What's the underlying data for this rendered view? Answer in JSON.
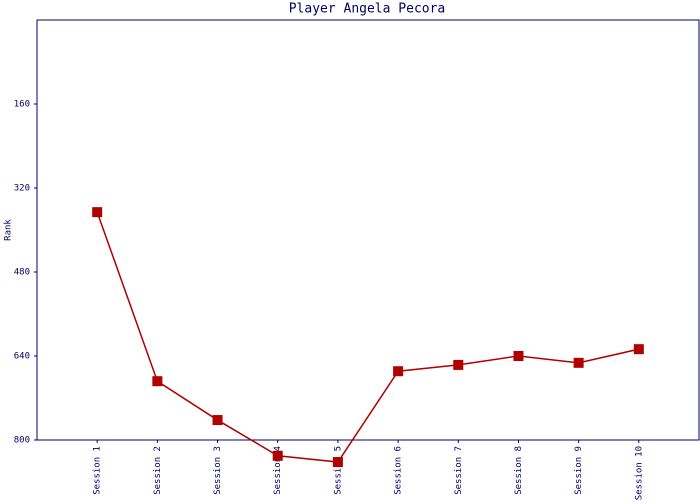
{
  "chart_data": {
    "type": "line",
    "title": "Player Angela Pecora",
    "y_label": "Rank",
    "categories": [
      "Session 1",
      "Session 2",
      "Session 3",
      "Session 4",
      "Session 5",
      "Session 6",
      "Session 7",
      "Session 8",
      "Session 9",
      "Session 10"
    ],
    "series": [
      {
        "name": "Rank",
        "color": "#b00000",
        "values": [
          366,
          688,
          762,
          830,
          842,
          669,
          657,
          640,
          653,
          627
        ]
      }
    ],
    "ylim": [
      800,
      0
    ],
    "yticks": [
      160,
      320,
      480,
      640,
      800
    ],
    "grid": false
  }
}
